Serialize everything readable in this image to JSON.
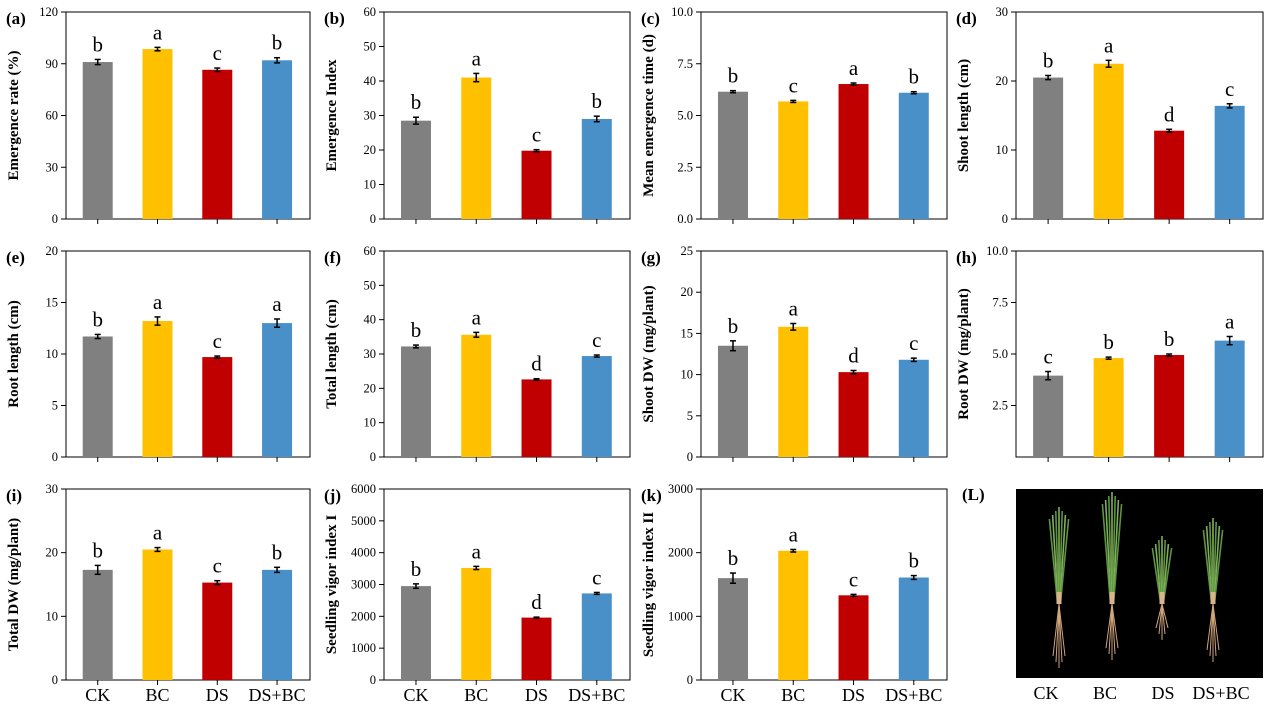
{
  "figure": {
    "categories": [
      "CK",
      "BC",
      "DS",
      "DS+BC"
    ],
    "colors": {
      "CK": "#808080",
      "BC": "#FFC000",
      "DS": "#C00000",
      "DS+BC": "#4A90C8"
    },
    "photo_panel": {
      "label": "(L)",
      "categories": [
        "CK",
        "BC",
        "DS",
        "DS+BC"
      ]
    }
  },
  "chart_data": [
    {
      "type": "bar",
      "panel_label": "(a)",
      "ylabel": "Emergence rate (%)",
      "ylim": [
        0,
        120
      ],
      "yticks": [
        0,
        30,
        60,
        90,
        120
      ],
      "ytick_labels": [
        "0",
        "30",
        "60",
        "90",
        "120"
      ],
      "categories": [
        "CK",
        "BC",
        "DS",
        "DS+BC"
      ],
      "values": [
        91,
        98.5,
        86.5,
        92
      ],
      "errors": [
        1.5,
        1,
        1,
        1.5
      ],
      "letters": [
        "b",
        "a",
        "c",
        "b"
      ]
    },
    {
      "type": "bar",
      "panel_label": "(b)",
      "ylabel": "Emergence Index",
      "ylim": [
        0,
        60
      ],
      "yticks": [
        0,
        10,
        20,
        30,
        40,
        50,
        60
      ],
      "ytick_labels": [
        "0",
        "10",
        "20",
        "30",
        "40",
        "50",
        "60"
      ],
      "categories": [
        "CK",
        "BC",
        "DS",
        "DS+BC"
      ],
      "values": [
        28.5,
        41,
        19.8,
        29
      ],
      "errors": [
        1,
        1.2,
        0.3,
        0.8
      ],
      "letters": [
        "b",
        "a",
        "c",
        "b"
      ]
    },
    {
      "type": "bar",
      "panel_label": "(c)",
      "ylabel": "Mean emergence time (d)",
      "ylim": [
        0,
        10
      ],
      "yticks": [
        0,
        2.5,
        5,
        7.5,
        10
      ],
      "ytick_labels": [
        "0.0",
        "2.5",
        "5.0",
        "7.5",
        "10.0"
      ],
      "categories": [
        "CK",
        "BC",
        "DS",
        "DS+BC"
      ],
      "values": [
        6.15,
        5.68,
        6.52,
        6.1
      ],
      "errors": [
        0.05,
        0.05,
        0.05,
        0.05
      ],
      "letters": [
        "b",
        "c",
        "a",
        "b"
      ]
    },
    {
      "type": "bar",
      "panel_label": "(d)",
      "ylabel": "Shoot length (cm)",
      "ylim": [
        0,
        30
      ],
      "yticks": [
        0,
        10,
        20,
        30
      ],
      "ytick_labels": [
        "0",
        "10",
        "20",
        "30"
      ],
      "categories": [
        "CK",
        "BC",
        "DS",
        "DS+BC"
      ],
      "values": [
        20.5,
        22.5,
        12.8,
        16.4
      ],
      "errors": [
        0.3,
        0.5,
        0.2,
        0.3
      ],
      "letters": [
        "b",
        "a",
        "d",
        "c"
      ]
    },
    {
      "type": "bar",
      "panel_label": "(e)",
      "ylabel": "Root length (cm)",
      "ylim": [
        0,
        20
      ],
      "yticks": [
        0,
        5,
        10,
        15,
        20
      ],
      "ytick_labels": [
        "0",
        "5",
        "10",
        "15",
        "20"
      ],
      "categories": [
        "CK",
        "BC",
        "DS",
        "DS+BC"
      ],
      "values": [
        11.7,
        13.2,
        9.7,
        13
      ],
      "errors": [
        0.2,
        0.4,
        0.1,
        0.4
      ],
      "letters": [
        "b",
        "a",
        "c",
        "a"
      ]
    },
    {
      "type": "bar",
      "panel_label": "(f)",
      "ylabel": "Total length (cm)",
      "ylim": [
        0,
        60
      ],
      "yticks": [
        0,
        10,
        20,
        30,
        40,
        50,
        60
      ],
      "ytick_labels": [
        "0",
        "10",
        "20",
        "30",
        "40",
        "50",
        "60"
      ],
      "categories": [
        "CK",
        "BC",
        "DS",
        "DS+BC"
      ],
      "values": [
        32.2,
        35.6,
        22.6,
        29.4
      ],
      "errors": [
        0.4,
        0.7,
        0.2,
        0.3
      ],
      "letters": [
        "b",
        "a",
        "d",
        "c"
      ]
    },
    {
      "type": "bar",
      "panel_label": "(g)",
      "ylabel": "Shoot DW (mg/plant)",
      "ylim": [
        0,
        25
      ],
      "yticks": [
        0,
        5,
        10,
        15,
        20,
        25
      ],
      "ytick_labels": [
        "0",
        "5",
        "10",
        "15",
        "20",
        "25"
      ],
      "categories": [
        "CK",
        "BC",
        "DS",
        "DS+BC"
      ],
      "values": [
        13.5,
        15.8,
        10.3,
        11.8
      ],
      "errors": [
        0.6,
        0.4,
        0.2,
        0.2
      ],
      "letters": [
        "b",
        "a",
        "d",
        "c"
      ]
    },
    {
      "type": "bar",
      "panel_label": "(h)",
      "ylabel": "Root DW (mg/plant)",
      "ylim": [
        0,
        10
      ],
      "yticks": [
        2.5,
        5,
        7.5,
        10
      ],
      "ytick_labels": [
        "2.5",
        "5.0",
        "7.5",
        "10.0"
      ],
      "categories": [
        "CK",
        "BC",
        "DS",
        "DS+BC"
      ],
      "values": [
        3.95,
        4.8,
        4.95,
        5.65
      ],
      "errors": [
        0.2,
        0.05,
        0.05,
        0.2
      ],
      "letters": [
        "c",
        "b",
        "b",
        "a"
      ]
    },
    {
      "type": "bar",
      "panel_label": "(i)",
      "ylabel": "Total DW (mg/plant)",
      "ylim": [
        0,
        30
      ],
      "yticks": [
        0,
        10,
        20,
        30
      ],
      "ytick_labels": [
        "0",
        "10",
        "20",
        "30"
      ],
      "categories": [
        "CK",
        "BC",
        "DS",
        "DS+BC"
      ],
      "values": [
        17.3,
        20.5,
        15.3,
        17.3
      ],
      "errors": [
        0.7,
        0.3,
        0.3,
        0.4
      ],
      "letters": [
        "b",
        "a",
        "c",
        "b"
      ]
    },
    {
      "type": "bar",
      "panel_label": "(j)",
      "ylabel": "Seedling vigor index I",
      "ylim": [
        0,
        6000
      ],
      "yticks": [
        0,
        1000,
        2000,
        3000,
        4000,
        5000,
        6000
      ],
      "ytick_labels": [
        "0",
        "1000",
        "2000",
        "3000",
        "4000",
        "5000",
        "6000"
      ],
      "categories": [
        "CK",
        "BC",
        "DS",
        "DS+BC"
      ],
      "values": [
        2950,
        3520,
        1960,
        2720
      ],
      "errors": [
        70,
        50,
        15,
        30
      ],
      "letters": [
        "b",
        "a",
        "d",
        "c"
      ]
    },
    {
      "type": "bar",
      "panel_label": "(k)",
      "ylabel": "Seedling vigor index II",
      "ylim": [
        0,
        3000
      ],
      "yticks": [
        0,
        1000,
        2000,
        3000
      ],
      "ytick_labels": [
        "0",
        "1000",
        "2000",
        "3000"
      ],
      "categories": [
        "CK",
        "BC",
        "DS",
        "DS+BC"
      ],
      "values": [
        1600,
        2030,
        1330,
        1610
      ],
      "errors": [
        80,
        20,
        15,
        30
      ],
      "letters": [
        "b",
        "a",
        "c",
        "b"
      ]
    }
  ]
}
